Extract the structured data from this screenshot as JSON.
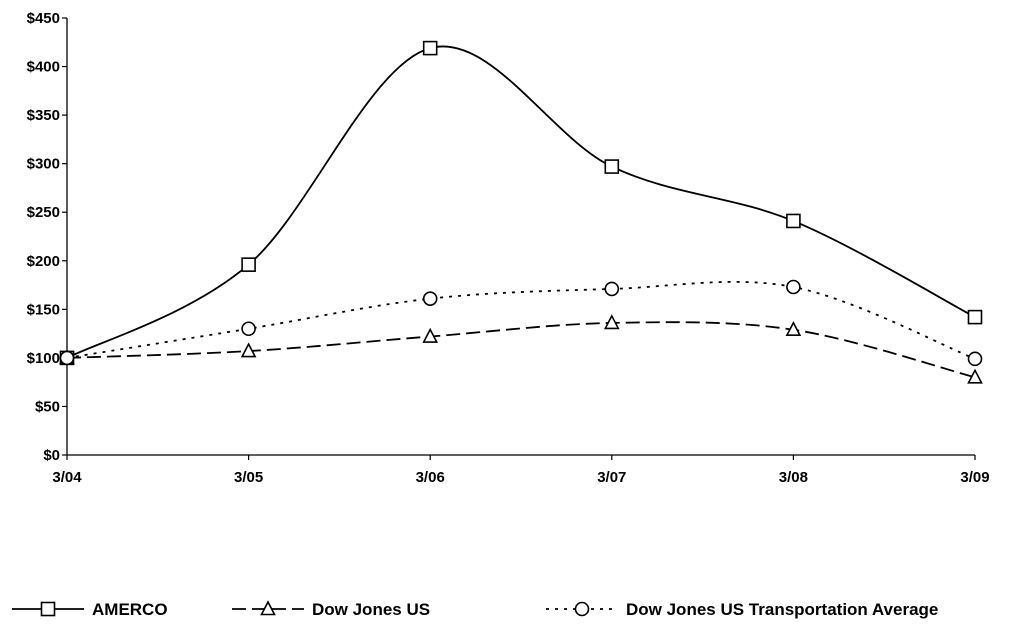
{
  "chart_data": {
    "type": "line",
    "categories": [
      "3/04",
      "3/05",
      "3/06",
      "3/07",
      "3/08",
      "3/09"
    ],
    "y_ticks": [
      0,
      50,
      100,
      150,
      200,
      250,
      300,
      350,
      400,
      450
    ],
    "y_tick_labels": [
      "$0",
      "$50",
      "$100",
      "$150",
      "$200",
      "$250",
      "$300",
      "$350",
      "$400",
      "$450"
    ],
    "ylim": [
      0,
      450
    ],
    "grid": false,
    "legend_position": "bottom",
    "series": [
      {
        "name": "AMERCO",
        "values": [
          100,
          196,
          419,
          297,
          241,
          142
        ],
        "line_style": "solid",
        "marker": "square",
        "color": "#000000"
      },
      {
        "name": "Dow Jones US",
        "values": [
          100,
          107,
          122,
          136,
          129,
          80
        ],
        "line_style": "dashed",
        "marker": "triangle",
        "color": "#000000"
      },
      {
        "name": "Dow Jones US Transportation Average",
        "values": [
          100,
          130,
          161,
          171,
          173,
          99
        ],
        "line_style": "dotted",
        "marker": "circle",
        "color": "#000000"
      }
    ]
  }
}
